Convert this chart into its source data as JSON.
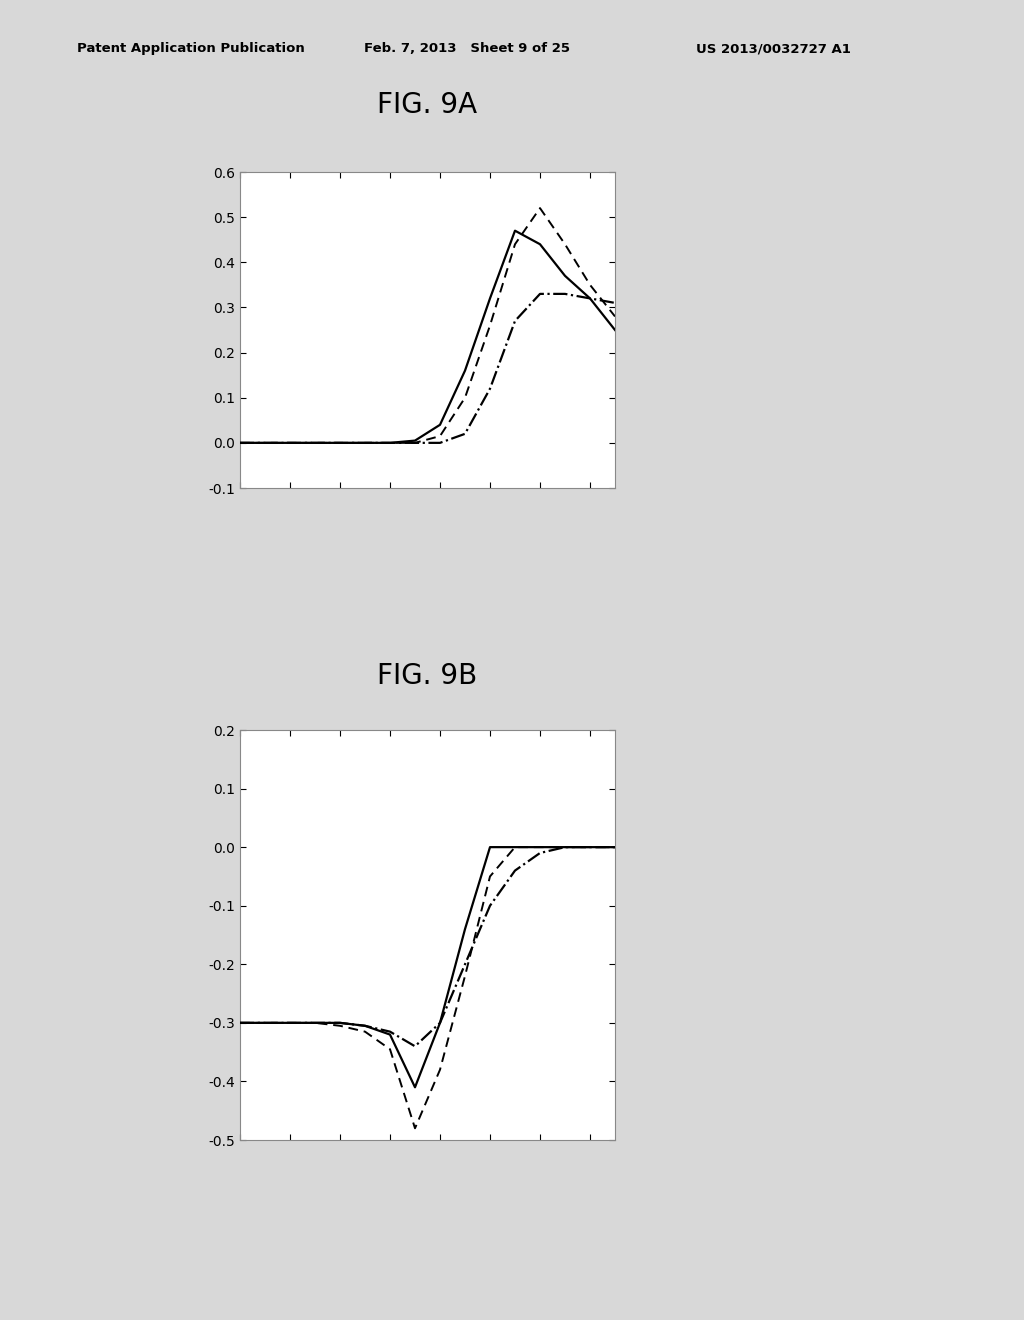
{
  "fig9a_title": "FIG. 9A",
  "fig9b_title": "FIG. 9B",
  "header_left": "Patent Application Publication",
  "header_mid": "Feb. 7, 2013   Sheet 9 of 25",
  "header_right": "US 2013/0032727 A1",
  "fig9a": {
    "ylim": [
      -0.1,
      0.6
    ],
    "yticks": [
      -0.1,
      0,
      0.1,
      0.2,
      0.3,
      0.4,
      0.5,
      0.6
    ],
    "solid_x": [
      0,
      1,
      2,
      3,
      4,
      5,
      6,
      7,
      8,
      9,
      10,
      11,
      12,
      13,
      14,
      15
    ],
    "solid_y": [
      0.0,
      0.0,
      0.0,
      0.0,
      0.0,
      0.0,
      0.0,
      0.005,
      0.04,
      0.16,
      0.32,
      0.47,
      0.44,
      0.37,
      0.32,
      0.25
    ],
    "dashed_x": [
      0,
      1,
      2,
      3,
      4,
      5,
      6,
      7,
      8,
      9,
      10,
      11,
      12,
      13,
      14,
      15
    ],
    "dashed_y": [
      0.0,
      0.0,
      0.0,
      0.0,
      0.0,
      0.0,
      0.0,
      0.0,
      0.015,
      0.1,
      0.26,
      0.44,
      0.52,
      0.44,
      0.35,
      0.28
    ],
    "dashdot_x": [
      0,
      1,
      2,
      3,
      4,
      5,
      6,
      7,
      8,
      9,
      10,
      11,
      12,
      13,
      14,
      15
    ],
    "dashdot_y": [
      0.0,
      0.0,
      0.0,
      0.0,
      0.0,
      0.0,
      0.0,
      0.0,
      0.0,
      0.02,
      0.12,
      0.27,
      0.33,
      0.33,
      0.32,
      0.31
    ]
  },
  "fig9b": {
    "ylim": [
      -0.5,
      0.2
    ],
    "yticks": [
      -0.5,
      -0.4,
      -0.3,
      -0.2,
      -0.1,
      0,
      0.1,
      0.2
    ],
    "solid_x": [
      0,
      1,
      2,
      3,
      4,
      5,
      6,
      7,
      8,
      9,
      10,
      11,
      12,
      13,
      14,
      15
    ],
    "solid_y": [
      -0.3,
      -0.3,
      -0.3,
      -0.3,
      -0.3,
      -0.305,
      -0.32,
      -0.41,
      -0.3,
      -0.14,
      0.0,
      0.0,
      0.0,
      0.0,
      0.0,
      0.0
    ],
    "dashed_x": [
      0,
      1,
      2,
      3,
      4,
      5,
      6,
      7,
      8,
      9,
      10,
      11,
      12,
      13,
      14,
      15
    ],
    "dashed_y": [
      -0.3,
      -0.3,
      -0.3,
      -0.3,
      -0.305,
      -0.315,
      -0.345,
      -0.48,
      -0.38,
      -0.22,
      -0.05,
      0.0,
      0.0,
      0.0,
      0.0,
      0.0
    ],
    "dashdot_x": [
      0,
      1,
      2,
      3,
      4,
      5,
      6,
      7,
      8,
      9,
      10,
      11,
      12,
      13,
      14,
      15
    ],
    "dashdot_y": [
      -0.3,
      -0.3,
      -0.3,
      -0.3,
      -0.3,
      -0.305,
      -0.315,
      -0.34,
      -0.3,
      -0.2,
      -0.1,
      -0.04,
      -0.01,
      0.0,
      0.0,
      0.0
    ]
  },
  "line_color": "#000000",
  "background_color": "#d8d8d8",
  "plot_bg": "#ffffff"
}
